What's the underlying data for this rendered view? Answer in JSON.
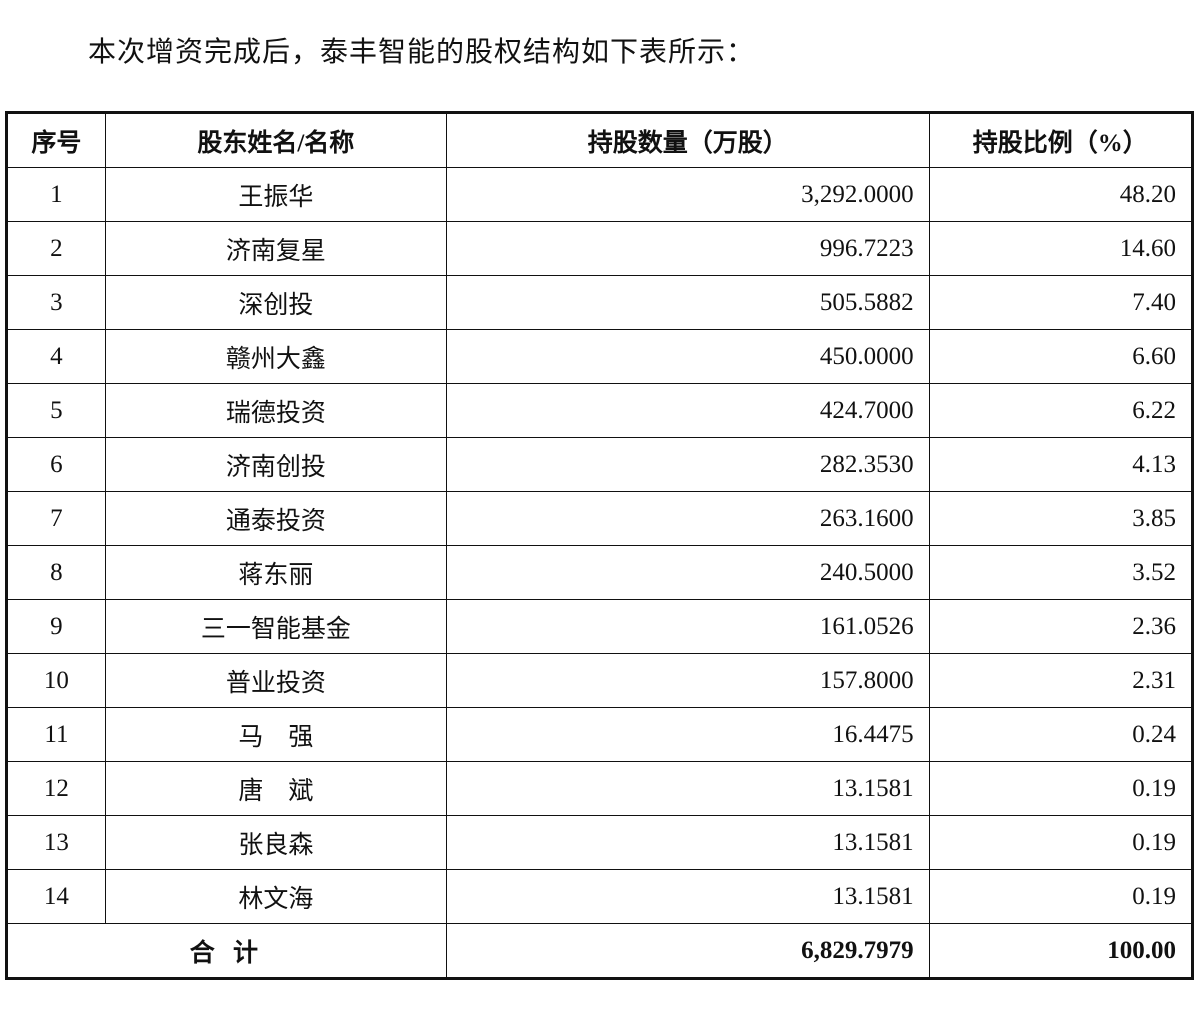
{
  "intro": "本次增资完成后，泰丰智能的股权结构如下表所示：",
  "table": {
    "header": [
      "序号",
      "股东姓名/名称",
      "持股数量（万股）",
      "持股比例（%）"
    ],
    "rows": [
      [
        "1",
        "王振华",
        "3,292.0000",
        "48.20"
      ],
      [
        "2",
        "济南复星",
        "996.7223",
        "14.60"
      ],
      [
        "3",
        "深创投",
        "505.5882",
        "7.40"
      ],
      [
        "4",
        "赣州大鑫",
        "450.0000",
        "6.60"
      ],
      [
        "5",
        "瑞德投资",
        "424.7000",
        "6.22"
      ],
      [
        "6",
        "济南创投",
        "282.3530",
        "4.13"
      ],
      [
        "7",
        "通泰投资",
        "263.1600",
        "3.85"
      ],
      [
        "8",
        "蒋东丽",
        "240.5000",
        "3.52"
      ],
      [
        "9",
        "三一智能基金",
        "161.0526",
        "2.36"
      ],
      [
        "10",
        "普业投资",
        "157.8000",
        "2.31"
      ],
      [
        "11",
        "马　强",
        "16.4475",
        "0.24"
      ],
      [
        "12",
        "唐　斌",
        "13.1581",
        "0.19"
      ],
      [
        "13",
        "张良森",
        "13.1581",
        "0.19"
      ],
      [
        "14",
        "林文海",
        "13.1581",
        "0.19"
      ]
    ],
    "total": [
      "合 计",
      "6,829.7979",
      "100.00"
    ]
  }
}
